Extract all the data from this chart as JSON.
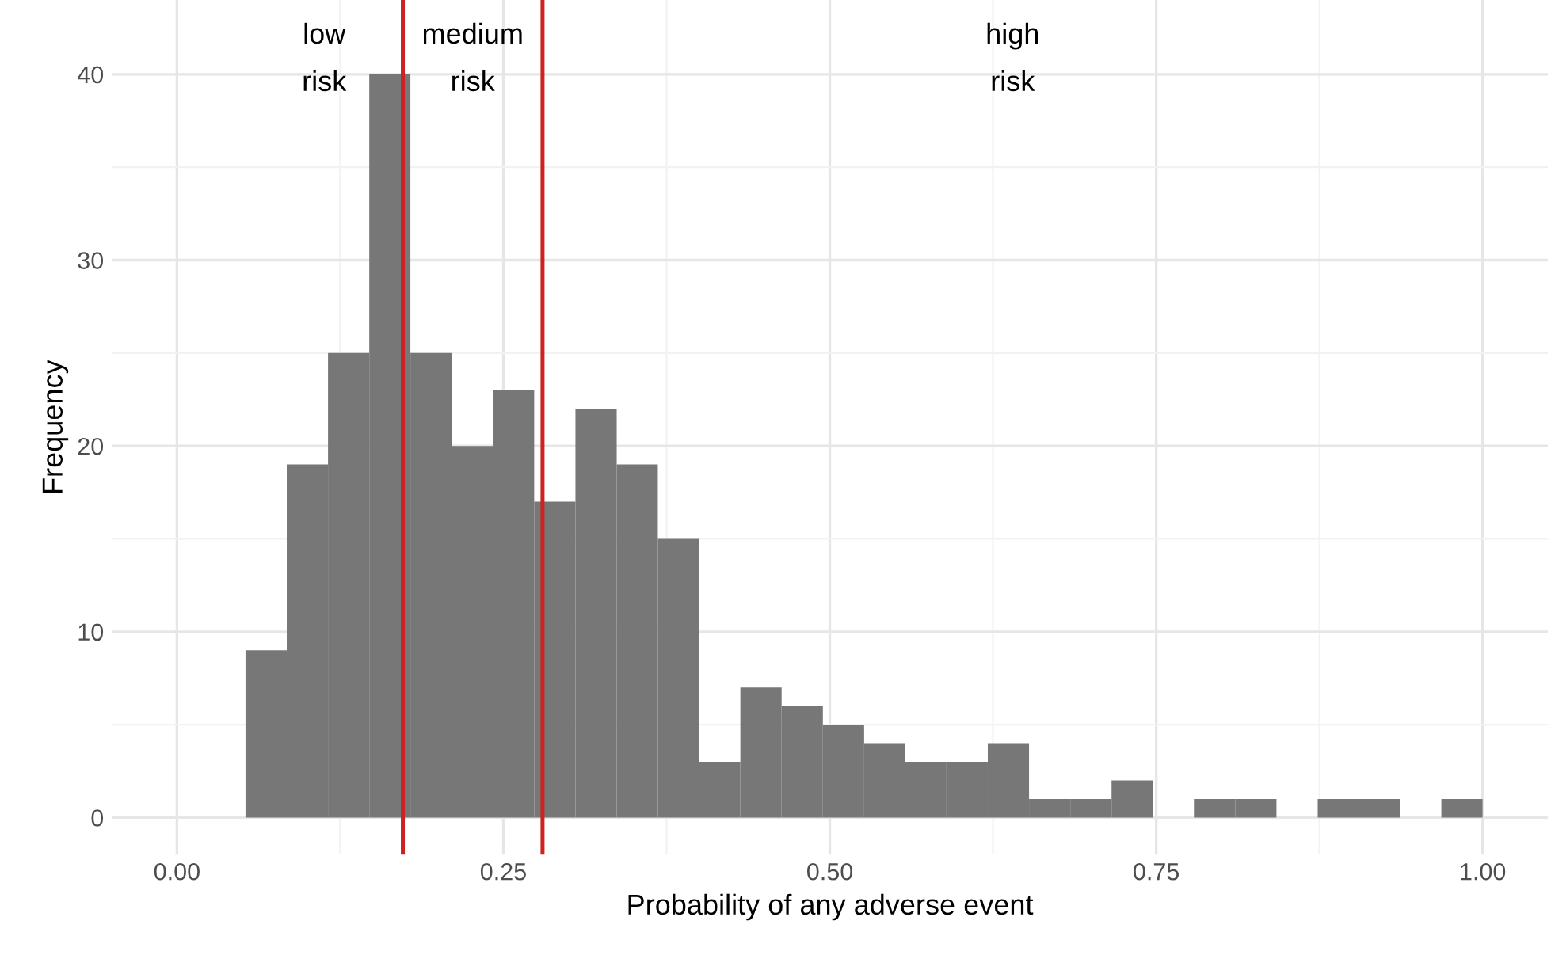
{
  "chart_data": {
    "type": "histogram",
    "xlabel": "Probability of any adverse event",
    "ylabel": "Frequency",
    "bins": [
      0.0525,
      0.0841,
      0.1157,
      0.1473,
      0.1788,
      0.2104,
      0.242,
      0.2736,
      0.3052,
      0.3368,
      0.3683,
      0.3999,
      0.4315,
      0.4631,
      0.4947,
      0.5263,
      0.5578,
      0.5894,
      0.621,
      0.6526,
      0.6842,
      0.7158,
      0.7473,
      0.7789,
      0.8105,
      0.8421,
      0.8737,
      0.9052,
      0.9368,
      0.9684,
      1.0
    ],
    "values": [
      9,
      19,
      25,
      40,
      25,
      20,
      23,
      17,
      22,
      19,
      15,
      3,
      7,
      6,
      5,
      4,
      3,
      3,
      4,
      1,
      1,
      2,
      0,
      1,
      1,
      0,
      1,
      1,
      0,
      1
    ],
    "color": "#777777",
    "xlim": [
      -0.05,
      1.05
    ],
    "ylim": [
      -2,
      44
    ],
    "xticks": [
      {
        "value": 0,
        "label": "0.00"
      },
      {
        "value": 0.25,
        "label": "0.25"
      },
      {
        "value": 0.5,
        "label": "0.50"
      },
      {
        "value": 0.75,
        "label": "0.75"
      },
      {
        "value": 1,
        "label": "1.00"
      }
    ],
    "yticks": [
      0,
      10,
      20,
      30,
      40
    ],
    "grid": true,
    "ref_lines": [
      {
        "axis": "x",
        "value": 0.173,
        "color": "#cc2222"
      },
      {
        "axis": "x",
        "value": 0.28,
        "color": "#cc2222"
      }
    ],
    "annotations": [
      "low\nrisk",
      "medium\nrisk",
      "high\nrisk"
    ]
  }
}
